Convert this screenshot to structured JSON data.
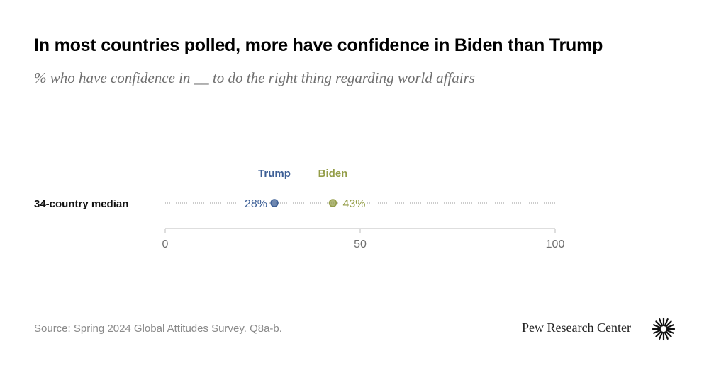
{
  "title": "In most countries polled, more have confidence in Biden than Trump",
  "subtitle": "% who have confidence in __ to do the right thing regarding world affairs",
  "source": "Source: Spring 2024 Global Attitudes Survey. Q8a-b.",
  "brand": "Pew Research Center",
  "chart_data": {
    "type": "scatter",
    "categories": [
      "34-country median"
    ],
    "series": [
      {
        "name": "Trump",
        "values": [
          28
        ],
        "labels": [
          "28%"
        ],
        "color": "#3d5f96"
      },
      {
        "name": "Biden",
        "values": [
          43
        ],
        "labels": [
          "43%"
        ],
        "color": "#949d48"
      }
    ],
    "xlim": [
      0,
      100
    ],
    "xticks": [
      0,
      50,
      100
    ],
    "xtick_labels": [
      "0",
      "50",
      "100"
    ],
    "legend": "above-points",
    "grid": false
  }
}
